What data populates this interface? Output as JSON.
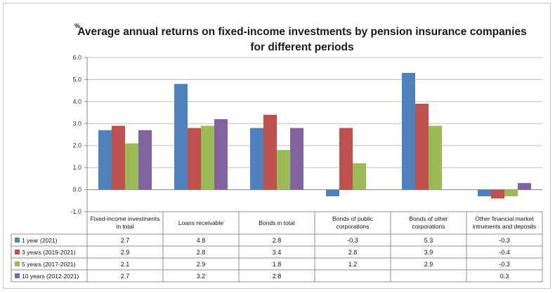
{
  "chart_data": {
    "type": "bar",
    "title_lines": [
      "Average annual returns on fixed-income investments by pension insurance companies",
      "for different periods"
    ],
    "unit_label": "%",
    "ylim": [
      -1.0,
      6.0
    ],
    "yticks": [
      "6.0",
      "5.0",
      "4.0",
      "3.0",
      "2.0",
      "1.0",
      "0.0",
      "-1.0"
    ],
    "ytick_values": [
      6,
      5,
      4,
      3,
      2,
      1,
      0,
      -1
    ],
    "grid": true,
    "legend": "data-table",
    "categories": [
      [
        "Fixed-income investments",
        "in total"
      ],
      [
        "Loans receivable"
      ],
      [
        "Bonds in total"
      ],
      [
        "Bonds of public",
        "corporations"
      ],
      [
        "Bonds of other",
        "corporations"
      ],
      [
        "Other financial market",
        "intruments and deposits"
      ]
    ],
    "series": [
      {
        "name": "1 year (2021)",
        "color": "#4f81bd",
        "values": [
          2.7,
          4.8,
          2.8,
          -0.3,
          5.3,
          -0.3
        ],
        "labels": [
          "2.7",
          "4.8",
          "2.8",
          "-0.3",
          "5.3",
          "-0.3"
        ]
      },
      {
        "name": "3 years (2019-2021)",
        "color": "#c0504d",
        "values": [
          2.9,
          2.8,
          3.4,
          2.8,
          3.9,
          -0.4
        ],
        "labels": [
          "2.9",
          "2.8",
          "3.4",
          "2.8",
          "3.9",
          "-0.4"
        ]
      },
      {
        "name": "5 years (2017-2021)",
        "color": "#9bbb59",
        "values": [
          2.1,
          2.9,
          1.8,
          1.2,
          2.9,
          -0.3
        ],
        "labels": [
          "2.1",
          "2.9",
          "1.8",
          "1.2",
          "2.9",
          "-0.3"
        ]
      },
      {
        "name": "10 years (2012-2021)",
        "color": "#8064a2",
        "values": [
          2.7,
          3.2,
          2.8,
          null,
          null,
          0.3
        ],
        "labels": [
          "2.7",
          "3.2",
          "2.8",
          "",
          "",
          "0.3"
        ]
      }
    ]
  }
}
